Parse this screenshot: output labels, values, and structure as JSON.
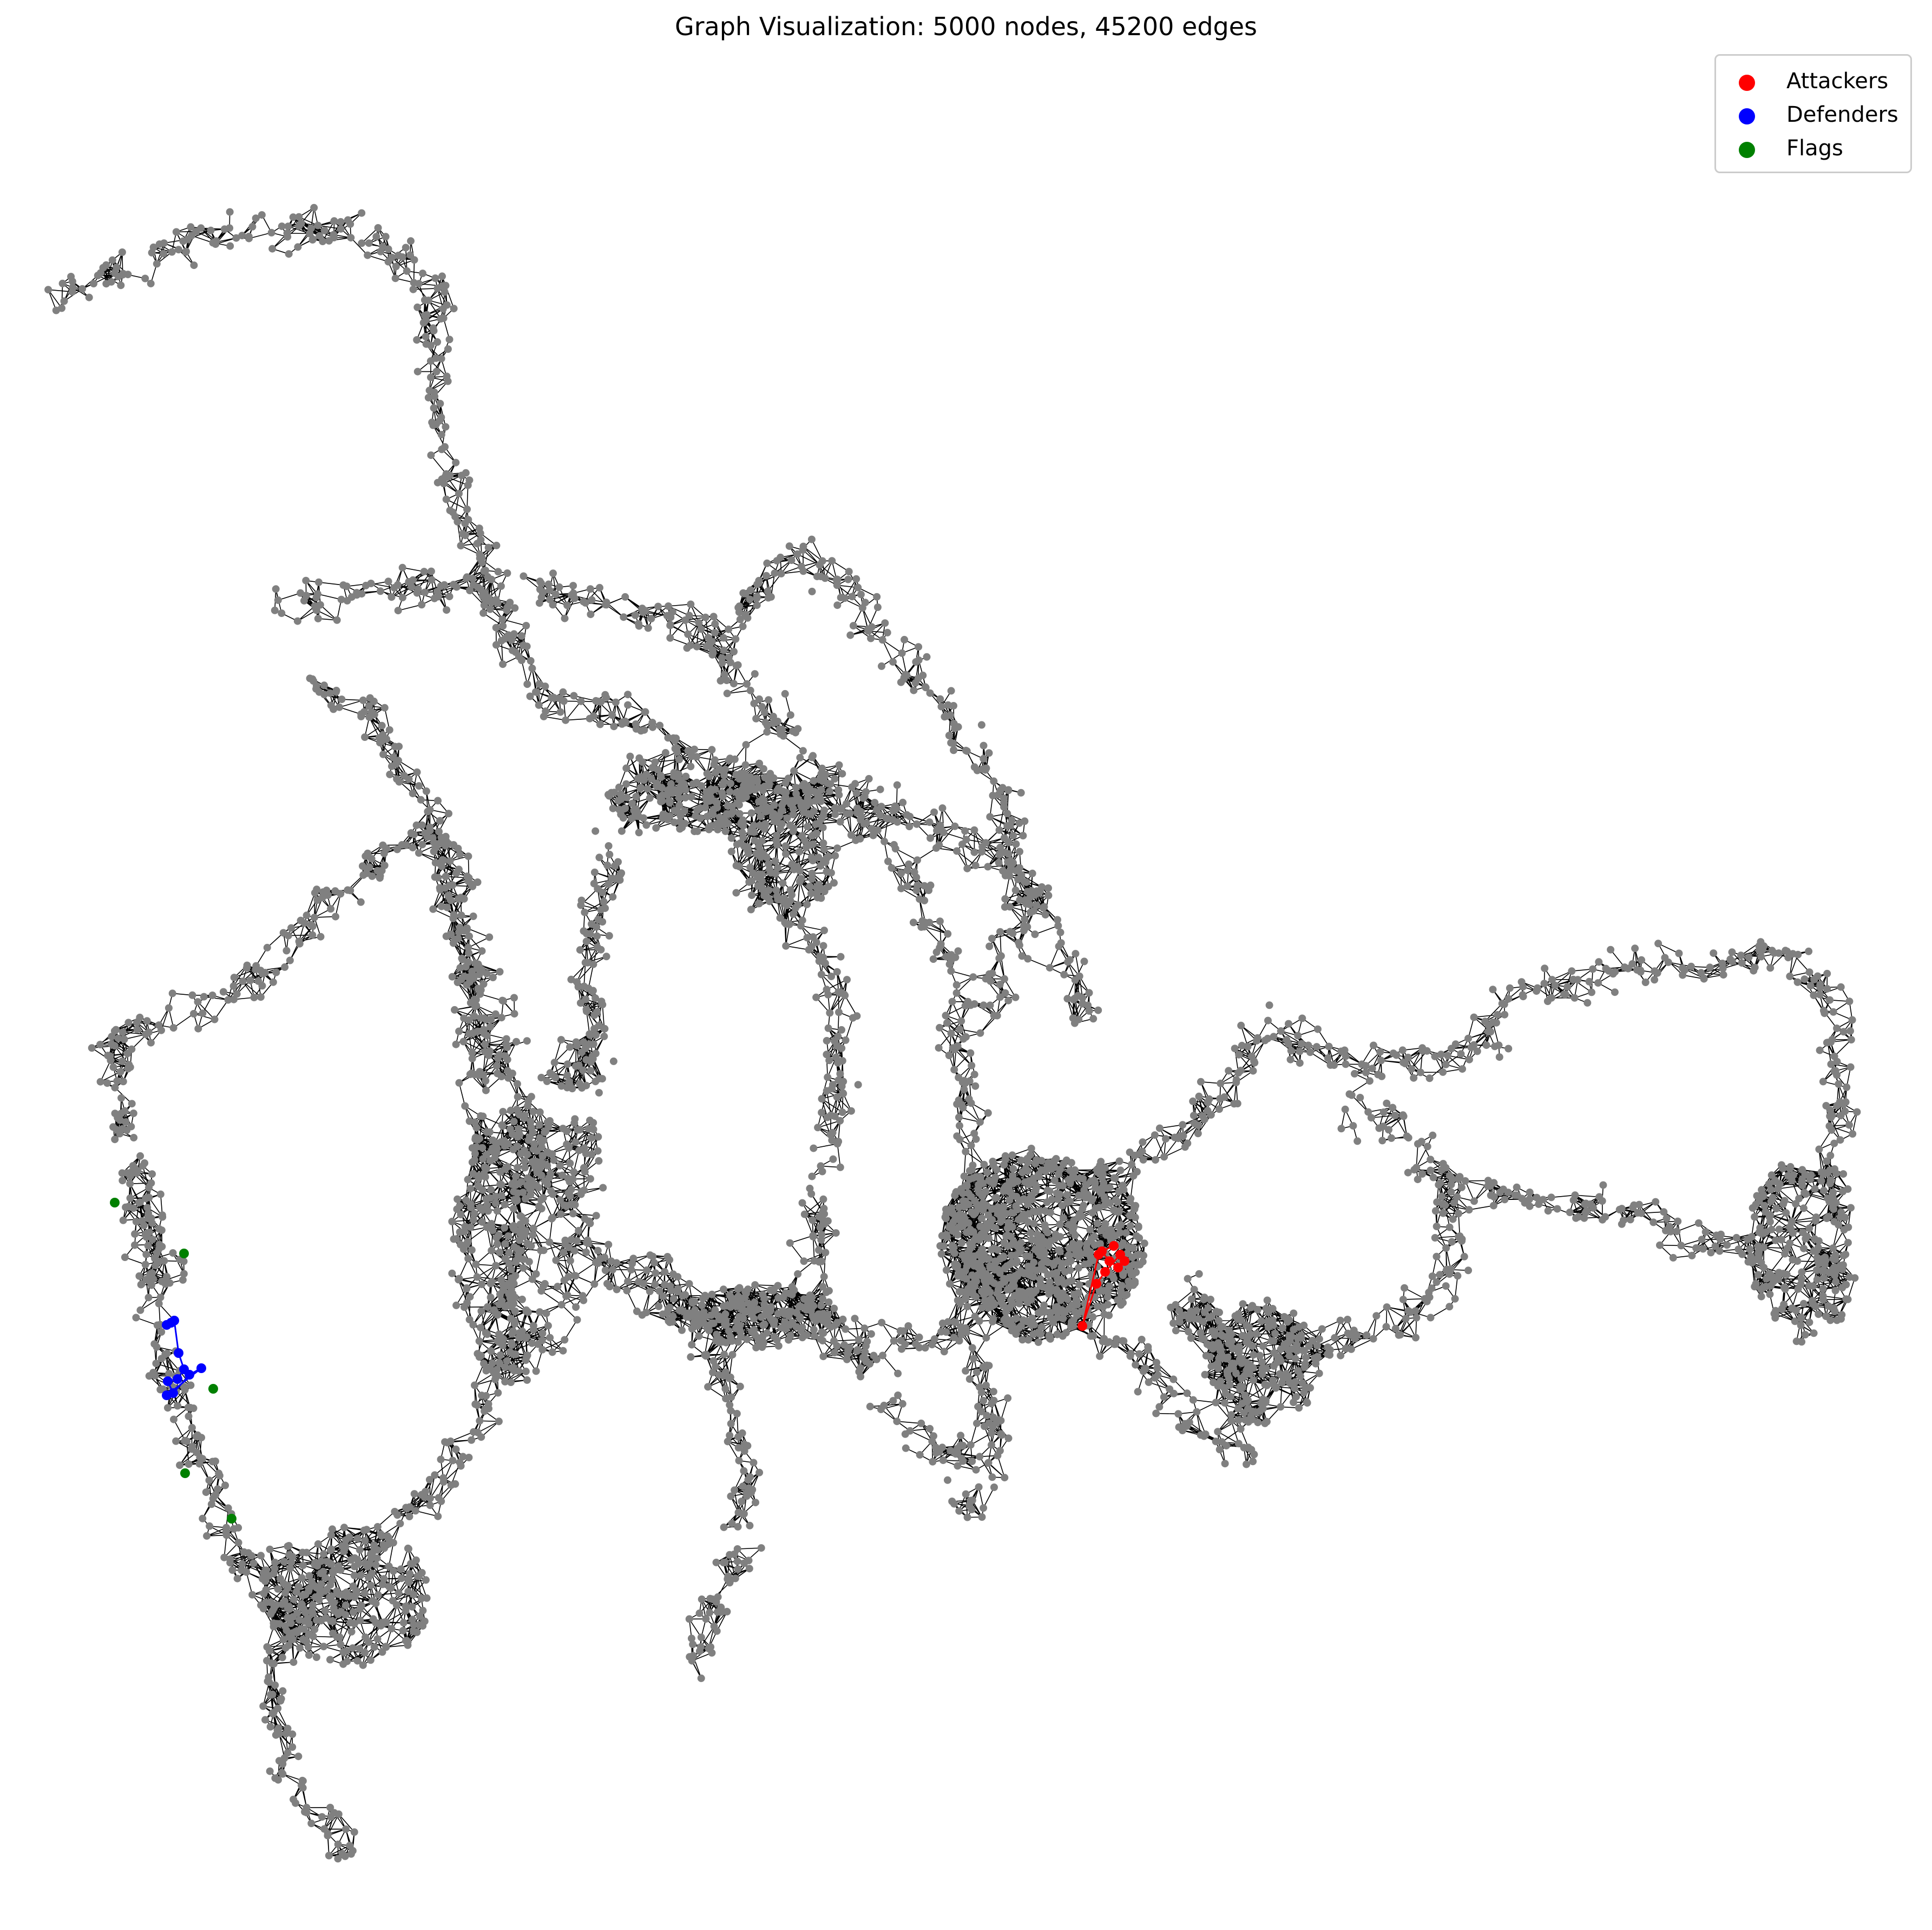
{
  "title": "Graph Visualization: 5000 nodes, 45200 edges",
  "legend": {
    "items": [
      {
        "label": "Attackers",
        "color": "#ff0000"
      },
      {
        "label": "Defenders",
        "color": "#0000ff"
      },
      {
        "label": "Flags",
        "color": "#008000"
      }
    ]
  },
  "colors": {
    "node": "#808080",
    "edge": "#000000",
    "attacker": "#ff0000",
    "defender": "#0000ff",
    "flag": "#008000",
    "background": "#ffffff"
  }
}
